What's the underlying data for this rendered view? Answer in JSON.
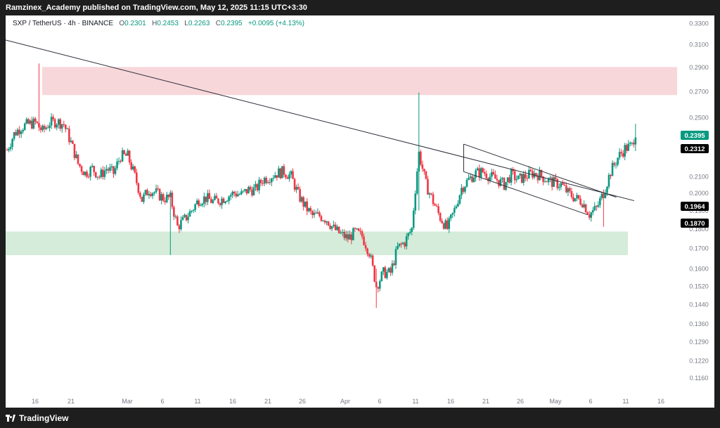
{
  "header": {
    "publish_text": "Ramzinex_Academy published on TradingView.com, May 12, 2025 11:15 UTC+3:30"
  },
  "legend": {
    "symbol": "SXP / TetherUS · 4h · BINANCE",
    "open_label": "O",
    "open": "0.2301",
    "high_label": "H",
    "high": "0.2453",
    "low_label": "L",
    "low": "0.2263",
    "close_label": "C",
    "close": "0.2395",
    "change": "+0.0095 (+4.13%)"
  },
  "footer": {
    "brand": "TradingView"
  },
  "colors": {
    "up": "#089981",
    "down": "#f23645",
    "resistance_zone": "#f8d7da",
    "support_zone": "#d4ecd9",
    "last_price_badge": "#089981",
    "dark_badge": "#000000"
  },
  "chart_data": {
    "type": "candlestick",
    "y_axis": {
      "scale": "log",
      "range": [
        0.1116,
        0.33
      ],
      "ticks": [
        "0.3300",
        "0.3100",
        "0.2900",
        "0.2700",
        "0.2500",
        "0.2100",
        "0.2000",
        "0.1900",
        "0.1800",
        "0.1700",
        "0.1600",
        "0.1520",
        "0.1440",
        "0.1360",
        "0.1290",
        "0.1220",
        "0.1160"
      ]
    },
    "x_axis": {
      "ticks": [
        "16",
        "21",
        "Mar",
        "6",
        "11",
        "16",
        "21",
        "26",
        "Apr",
        "6",
        "11",
        "16",
        "21",
        "26",
        "May",
        "6",
        "11",
        "16"
      ]
    },
    "price_badges": [
      {
        "value": "0.2395",
        "style": "last"
      },
      {
        "value": "0.2312",
        "style": "dark"
      },
      {
        "value": "0.1964",
        "style": "dark"
      },
      {
        "value": "0.1870",
        "style": "dark"
      }
    ],
    "zones": [
      {
        "name": "resistance",
        "low": 0.267,
        "high": 0.29
      },
      {
        "name": "support",
        "low": 0.1665,
        "high": 0.1785
      }
    ],
    "path_points": [
      [
        0,
        0.227
      ],
      [
        2,
        0.238
      ],
      [
        4,
        0.243
      ],
      [
        6,
        0.245
      ],
      [
        8,
        0.246
      ],
      [
        10,
        0.24
      ],
      [
        12,
        0.246
      ],
      [
        14,
        0.247
      ],
      [
        16,
        0.245
      ],
      [
        18,
        0.232
      ],
      [
        20,
        0.218
      ],
      [
        22,
        0.212
      ],
      [
        24,
        0.215
      ],
      [
        26,
        0.21
      ],
      [
        28,
        0.215
      ],
      [
        30,
        0.212
      ],
      [
        32,
        0.223
      ],
      [
        34,
        0.223
      ],
      [
        36,
        0.21
      ],
      [
        38,
        0.196
      ],
      [
        40,
        0.202
      ],
      [
        42,
        0.2
      ],
      [
        44,
        0.197
      ],
      [
        46,
        0.197
      ],
      [
        48,
        0.181
      ],
      [
        50,
        0.185
      ],
      [
        52,
        0.19
      ],
      [
        54,
        0.196
      ],
      [
        56,
        0.197
      ],
      [
        58,
        0.195
      ],
      [
        60,
        0.196
      ],
      [
        62,
        0.198
      ],
      [
        64,
        0.2
      ],
      [
        66,
        0.199
      ],
      [
        68,
        0.202
      ],
      [
        70,
        0.202
      ],
      [
        72,
        0.208
      ],
      [
        74,
        0.21
      ],
      [
        76,
        0.212
      ],
      [
        78,
        0.213
      ],
      [
        80,
        0.21
      ],
      [
        82,
        0.199
      ],
      [
        84,
        0.192
      ],
      [
        86,
        0.187
      ],
      [
        88,
        0.187
      ],
      [
        90,
        0.185
      ],
      [
        92,
        0.18
      ],
      [
        94,
        0.177
      ],
      [
        96,
        0.175
      ],
      [
        98,
        0.178
      ],
      [
        100,
        0.176
      ],
      [
        102,
        0.168
      ],
      [
        104,
        0.152
      ],
      [
        106,
        0.158
      ],
      [
        108,
        0.158
      ],
      [
        110,
        0.17
      ],
      [
        112,
        0.173
      ],
      [
        114,
        0.18
      ],
      [
        116,
        0.225
      ],
      [
        118,
        0.205
      ],
      [
        120,
        0.195
      ],
      [
        122,
        0.186
      ],
      [
        124,
        0.18
      ],
      [
        126,
        0.19
      ],
      [
        128,
        0.203
      ],
      [
        130,
        0.208
      ],
      [
        132,
        0.212
      ],
      [
        134,
        0.213
      ],
      [
        136,
        0.21
      ],
      [
        138,
        0.208
      ],
      [
        140,
        0.205
      ],
      [
        142,
        0.211
      ],
      [
        144,
        0.208
      ],
      [
        146,
        0.21
      ],
      [
        148,
        0.212
      ],
      [
        150,
        0.211
      ],
      [
        152,
        0.208
      ],
      [
        154,
        0.206
      ],
      [
        156,
        0.205
      ],
      [
        158,
        0.2
      ],
      [
        160,
        0.197
      ],
      [
        162,
        0.195
      ],
      [
        164,
        0.188
      ],
      [
        166,
        0.191
      ],
      [
        168,
        0.2
      ],
      [
        170,
        0.213
      ],
      [
        172,
        0.222
      ],
      [
        174,
        0.228
      ],
      [
        176,
        0.23
      ],
      [
        177,
        0.2395
      ]
    ],
    "spikes": [
      {
        "at": 9,
        "high": 0.293,
        "low": 0.24
      },
      {
        "at": 46,
        "high": 0.198,
        "low": 0.1665
      },
      {
        "at": 104,
        "high": 0.16,
        "low": 0.1425
      },
      {
        "at": 116,
        "high": 0.269,
        "low": 0.19
      },
      {
        "at": 168,
        "high": 0.202,
        "low": 0.181
      },
      {
        "at": 177,
        "high": 0.2453,
        "low": 0.2263
      }
    ],
    "lines": [
      {
        "name": "descending-trendline",
        "points": [
          [
            0,
            0.314
          ],
          [
            177,
            0.1955
          ]
        ]
      },
      {
        "name": "channel-upper",
        "points": [
          [
            129,
            0.231
          ],
          [
            172,
            0.1975
          ]
        ]
      },
      {
        "name": "channel-lower",
        "points": [
          [
            129,
            0.213
          ],
          [
            164,
            0.1875
          ]
        ]
      },
      {
        "name": "channel-left-edge",
        "points": [
          [
            129,
            0.213
          ],
          [
            129,
            0.231
          ]
        ]
      }
    ]
  }
}
